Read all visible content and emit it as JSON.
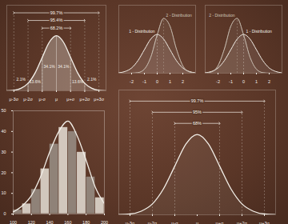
{
  "chart_data": [
    {
      "type": "area",
      "x": [
        -3.5,
        -3,
        -2.5,
        -2,
        -1.5,
        -1,
        -0.5,
        0,
        0.5,
        1,
        1.5,
        2,
        2.5,
        3,
        3.5
      ],
      "values": [
        0.001,
        0.004,
        0.018,
        0.054,
        0.13,
        0.242,
        0.352,
        0.399,
        0.352,
        0.242,
        0.13,
        0.054,
        0.018,
        0.004,
        0.001
      ],
      "xlim": [
        -3.5,
        3.5
      ],
      "ylim": [
        0,
        0.62
      ],
      "xticks": [
        {
          "value": -3,
          "label": "μ-3σ"
        },
        {
          "value": -2,
          "label": "μ-2σ"
        },
        {
          "value": -1,
          "label": "μ-σ"
        },
        {
          "value": 0,
          "label": "μ"
        },
        {
          "value": 1,
          "label": "μ+σ"
        },
        {
          "value": 2,
          "label": "μ+2σ"
        },
        {
          "value": 3,
          "label": "μ+3σ"
        }
      ],
      "tick_labels": "x",
      "grid": false,
      "color": "#f3efe8",
      "regions": [
        {
          "from": -3,
          "to": -2,
          "label": "2.1%"
        },
        {
          "from": -2,
          "to": -1,
          "label": "13.6%"
        },
        {
          "from": -1,
          "to": 0,
          "label": "34.1%"
        },
        {
          "from": 0,
          "to": 1,
          "label": "34.1%"
        },
        {
          "from": 1,
          "to": 2,
          "label": "13.6%"
        },
        {
          "from": 2,
          "to": 3,
          "label": "2.1%"
        }
      ],
      "ranges": [
        {
          "from": -1,
          "to": 1,
          "label": "68.2%"
        },
        {
          "from": -2,
          "to": 2,
          "label": "95.4%"
        },
        {
          "from": -3,
          "to": 3,
          "label": "99.7%"
        }
      ]
    },
    {
      "type": "histogram",
      "bins": [
        100,
        110,
        120,
        130,
        140,
        150,
        160,
        170,
        180,
        190,
        200
      ],
      "values": [
        2,
        5,
        12,
        22,
        34,
        42,
        40,
        30,
        18,
        8
      ],
      "colors": [
        "#9a9087",
        "#e8e2d8",
        "#9a9087",
        "#e8e2d8",
        "#9a9087",
        "#e8e2d8",
        "#9a9087",
        "#e8e2d8",
        "#9a9087",
        "#e8e2d8"
      ],
      "xlim": [
        100,
        200
      ],
      "ylim": [
        0,
        50
      ],
      "xticks": [
        100,
        120,
        140,
        160,
        180,
        200
      ],
      "yticks": [
        0,
        10,
        20,
        30,
        40,
        50
      ],
      "grid": false,
      "color": "#f3efe8",
      "curve": {
        "x": [
          100,
          110,
          120,
          130,
          140,
          150,
          160,
          170,
          180,
          190,
          200
        ],
        "values": [
          1,
          4,
          9,
          18,
          30,
          40,
          45,
          38,
          26,
          13,
          5
        ]
      }
    },
    {
      "type": "area",
      "x": [
        -3.5,
        -3,
        -2.5,
        -2,
        -1.5,
        -1,
        -0.5,
        0,
        0.5,
        1,
        1.5,
        2,
        2.5,
        3,
        3.5
      ],
      "values": [
        0.001,
        0.004,
        0.018,
        0.054,
        0.13,
        0.242,
        0.352,
        0.399,
        0.352,
        0.242,
        0.13,
        0.054,
        0.018,
        0.004,
        0.001
      ],
      "xlim": [
        -3.5,
        3.5
      ],
      "ylim": [
        0,
        0.62
      ],
      "xticks": [
        {
          "value": -3,
          "label": "μ-3σ"
        },
        {
          "value": -2,
          "label": "μ-2σ"
        },
        {
          "value": -1,
          "label": "μ-σ"
        },
        {
          "value": 0,
          "label": "μ"
        },
        {
          "value": 1,
          "label": "μ+σ"
        },
        {
          "value": 2,
          "label": "μ+2σ"
        },
        {
          "value": 3,
          "label": "μ+3σ"
        }
      ],
      "tick_labels": "x",
      "grid": false,
      "color": "#f3efe8",
      "ranges": [
        {
          "from": -1,
          "to": 1,
          "label": "68%"
        },
        {
          "from": -2,
          "to": 2,
          "label": "95%"
        },
        {
          "from": -3,
          "to": 3,
          "label": "99.7%"
        }
      ]
    },
    {
      "type": "line",
      "x": [
        -3,
        -2.5,
        -2,
        -1.5,
        -1,
        -0.5,
        0,
        0.5,
        1,
        1.5,
        2,
        2.5,
        3
      ],
      "xlim": [
        -3,
        3
      ],
      "ylim": [
        0,
        0.7
      ],
      "xticks": [
        -2,
        -1,
        0,
        1,
        2
      ],
      "tick_labels": "x",
      "grid": false,
      "series": [
        {
          "name": "1 - Distribution",
          "color": "#f3efe8",
          "values": [
            0.004,
            0.018,
            0.054,
            0.13,
            0.242,
            0.352,
            0.399,
            0.352,
            0.242,
            0.13,
            0.054,
            0.018,
            0.004
          ]
        },
        {
          "name": "2 - Distribution",
          "color": "#cfc6ba",
          "values": [
            0,
            0,
            0.001,
            0.006,
            0.042,
            0.166,
            0.395,
            0.564,
            0.484,
            0.25,
            0.077,
            0.014,
            0.001
          ]
        }
      ]
    },
    {
      "type": "line",
      "x": [
        -3,
        -2.5,
        -2,
        -1.5,
        -1,
        -0.5,
        0,
        0.5,
        1,
        1.5,
        2,
        2.5,
        3
      ],
      "xlim": [
        -3,
        3
      ],
      "ylim": [
        0,
        0.7
      ],
      "xticks": [
        -2,
        -1,
        0,
        1,
        2
      ],
      "tick_labels": "x",
      "grid": false,
      "series": [
        {
          "name": "1 - Distribution",
          "color": "#f3efe8",
          "values": [
            0.004,
            0.018,
            0.054,
            0.13,
            0.242,
            0.352,
            0.399,
            0.352,
            0.242,
            0.13,
            0.054,
            0.018,
            0.004
          ]
        },
        {
          "name": "2 - Distribution",
          "color": "#cfc6ba",
          "values": [
            0.001,
            0.014,
            0.077,
            0.25,
            0.484,
            0.564,
            0.395,
            0.166,
            0.042,
            0.006,
            0.001,
            0,
            0
          ]
        }
      ]
    }
  ]
}
